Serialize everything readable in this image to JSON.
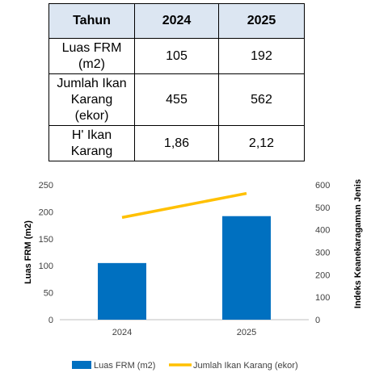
{
  "table": {
    "header": [
      "Tahun",
      "2024",
      "2025"
    ],
    "rows": [
      [
        "Luas FRM (m2)",
        "105",
        "192"
      ],
      [
        "Jumlah Ikan Karang (ekor)",
        "455",
        "562"
      ],
      [
        "H' Ikan Karang",
        "1,86",
        "2,12"
      ]
    ]
  },
  "chart_data": {
    "type": "bar",
    "categories": [
      "2024",
      "2025"
    ],
    "series": [
      {
        "name": "Luas FRM (m2)",
        "type": "bar",
        "axis": "left",
        "values": [
          105,
          192
        ],
        "color": "#0070c0"
      },
      {
        "name": "Jumlah Ikan Karang (ekor)",
        "type": "line",
        "axis": "right",
        "values": [
          455,
          562
        ],
        "color": "#ffc000"
      }
    ],
    "ylabel": "Luas FRM (m2)",
    "y2label": "Indeks Keanekaragaman Jenis",
    "ylim": [
      0,
      250
    ],
    "y2lim": [
      0,
      600
    ],
    "yticks": [
      "0",
      "50",
      "100",
      "150",
      "200",
      "250"
    ],
    "y2ticks": [
      "0",
      "100",
      "200",
      "300",
      "400",
      "500",
      "600"
    ],
    "grid": false,
    "legend": "bottom"
  }
}
